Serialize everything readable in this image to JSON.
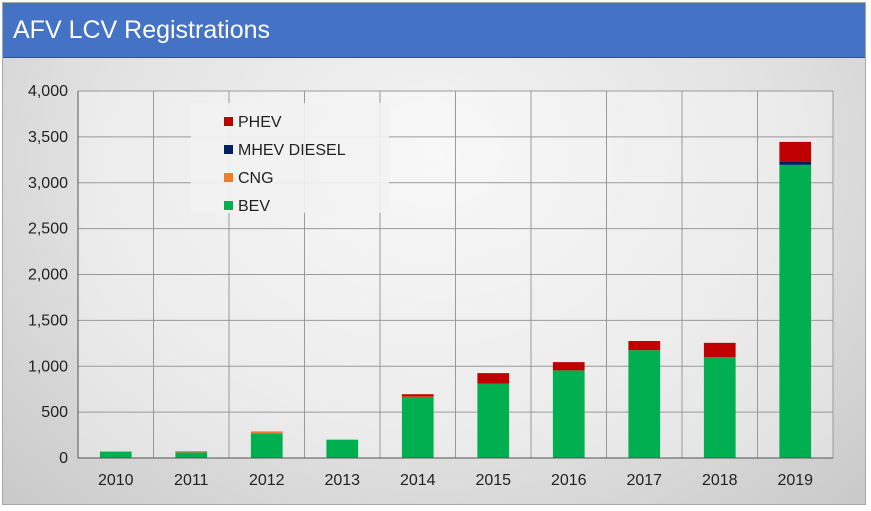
{
  "title": "AFV LCV Registrations",
  "chart_data": {
    "type": "bar",
    "stacked": true,
    "title": "AFV LCV Registrations",
    "xlabel": "",
    "ylabel": "",
    "categories": [
      "2010",
      "2011",
      "2012",
      "2013",
      "2014",
      "2015",
      "2016",
      "2017",
      "2018",
      "2019"
    ],
    "series": [
      {
        "name": "BEV",
        "color": "#00b050",
        "values": [
          70,
          60,
          270,
          200,
          665,
          810,
          955,
          1175,
          1100,
          3195
        ]
      },
      {
        "name": "CNG",
        "color": "#ed7d31",
        "values": [
          0,
          15,
          20,
          0,
          5,
          0,
          0,
          0,
          0,
          0
        ]
      },
      {
        "name": "MHEV DIESEL",
        "color": "#002060",
        "values": [
          0,
          0,
          0,
          0,
          0,
          0,
          0,
          0,
          0,
          40
        ]
      },
      {
        "name": "PHEV",
        "color": "#c00000",
        "values": [
          0,
          0,
          0,
          0,
          25,
          115,
          90,
          100,
          155,
          210
        ]
      }
    ],
    "legend_order": [
      "PHEV",
      "MHEV DIESEL",
      "CNG",
      "BEV"
    ],
    "y_ticks": [
      "0",
      "500",
      "1,000",
      "1,500",
      "2,000",
      "2,500",
      "3,000",
      "3,500",
      "4,000"
    ],
    "ylim": [
      0,
      4000
    ],
    "grid": true,
    "legend_position": "top-left"
  }
}
